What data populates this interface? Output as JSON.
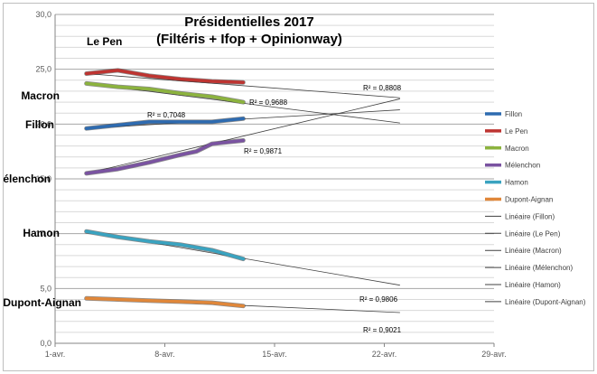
{
  "chart_data": {
    "type": "line",
    "title_line1": "Présidentielles 2017",
    "title_line2": "(Filtéris + Ifop + Opinionway)",
    "xlabel": "",
    "ylabel": "",
    "ylim": [
      0,
      30
    ],
    "y_ticks": [
      "0,0",
      "5,0",
      "10,0",
      "15,0",
      "20,0",
      "25,0",
      "30,0"
    ],
    "xlim": [
      "2017-04-01",
      "2017-04-29"
    ],
    "x_ticks": [
      {
        "date": "2017-04-01",
        "label": "1-avr."
      },
      {
        "date": "2017-04-08",
        "label": "8-avr."
      },
      {
        "date": "2017-04-15",
        "label": "15-avr."
      },
      {
        "date": "2017-04-22",
        "label": "22-avr."
      },
      {
        "date": "2017-04-29",
        "label": "29-avr."
      }
    ],
    "grid": "horizontal",
    "legend_position": "right",
    "series": [
      {
        "name": "Fillon",
        "short_label": "Fillon",
        "color": "#2E6BB0",
        "points": [
          [
            "2017-04-03",
            19.6
          ],
          [
            "2017-04-05",
            19.9
          ],
          [
            "2017-04-07",
            20.2
          ],
          [
            "2017-04-09",
            20.2
          ],
          [
            "2017-04-11",
            20.2
          ],
          [
            "2017-04-13",
            20.5
          ]
        ],
        "trend": {
          "name": "Linéaire (Fillon)",
          "end": [
            "2017-04-23",
            21.3
          ],
          "r2": "R² = 0,7048"
        }
      },
      {
        "name": "Le Pen",
        "short_label": "Le Pen",
        "color": "#BE3431",
        "points": [
          [
            "2017-04-03",
            24.6
          ],
          [
            "2017-04-05",
            24.9
          ],
          [
            "2017-04-07",
            24.4
          ],
          [
            "2017-04-09",
            24.1
          ],
          [
            "2017-04-11",
            23.9
          ],
          [
            "2017-04-13",
            23.8
          ]
        ],
        "trend": {
          "name": "Linéaire (Le Pen)",
          "end": [
            "2017-04-23",
            22.4
          ],
          "r2": "R² = 0,8808"
        }
      },
      {
        "name": "Macron",
        "short_label": "Macron",
        "color": "#8CB33E",
        "points": [
          [
            "2017-04-03",
            23.7
          ],
          [
            "2017-04-05",
            23.4
          ],
          [
            "2017-04-07",
            23.2
          ],
          [
            "2017-04-09",
            22.8
          ],
          [
            "2017-04-11",
            22.5
          ],
          [
            "2017-04-13",
            22.0
          ]
        ],
        "trend": {
          "name": "Linéaire (Macron)",
          "end": [
            "2017-04-23",
            20.1
          ],
          "r2": "R² = 0,9688"
        }
      },
      {
        "name": "Mélenchon",
        "short_label": "Mélenchon",
        "color": "#7A53A1",
        "points": [
          [
            "2017-04-03",
            15.5
          ],
          [
            "2017-04-05",
            15.9
          ],
          [
            "2017-04-07",
            16.5
          ],
          [
            "2017-04-09",
            17.2
          ],
          [
            "2017-04-10",
            17.5
          ],
          [
            "2017-04-11",
            18.2
          ],
          [
            "2017-04-13",
            18.5
          ]
        ],
        "trend": {
          "name": "Linéaire (Mélenchon)",
          "end": [
            "2017-04-23",
            22.3
          ],
          "r2": "R² = 0,9871"
        }
      },
      {
        "name": "Hamon",
        "short_label": "Hamon",
        "color": "#3AA3C0",
        "points": [
          [
            "2017-04-03",
            10.2
          ],
          [
            "2017-04-05",
            9.7
          ],
          [
            "2017-04-07",
            9.3
          ],
          [
            "2017-04-09",
            9.0
          ],
          [
            "2017-04-11",
            8.5
          ],
          [
            "2017-04-13",
            7.7
          ]
        ],
        "trend": {
          "name": "Linéaire (Hamon)",
          "end": [
            "2017-04-23",
            5.3
          ],
          "r2": "R² = 0,9806"
        }
      },
      {
        "name": "Dupont-Aignan",
        "short_label": "Dupont-Aignan",
        "color": "#E0873A",
        "points": [
          [
            "2017-04-03",
            4.1
          ],
          [
            "2017-04-05",
            4.0
          ],
          [
            "2017-04-07",
            3.9
          ],
          [
            "2017-04-09",
            3.8
          ],
          [
            "2017-04-11",
            3.7
          ],
          [
            "2017-04-13",
            3.4
          ]
        ],
        "trend": {
          "name": "Linéaire (Dupont-Aignan)",
          "end": [
            "2017-04-23",
            2.8
          ],
          "r2": "R² = 0,9021"
        }
      }
    ]
  }
}
